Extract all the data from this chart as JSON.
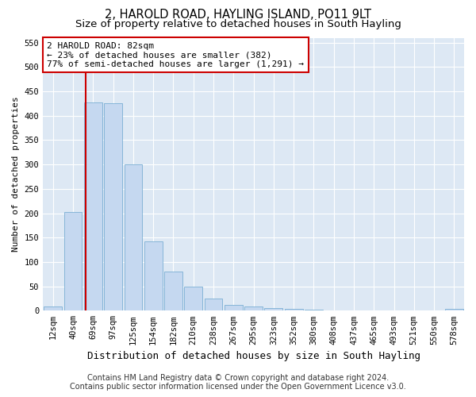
{
  "title": "2, HAROLD ROAD, HAYLING ISLAND, PO11 9LT",
  "subtitle": "Size of property relative to detached houses in South Hayling",
  "xlabel": "Distribution of detached houses by size in South Hayling",
  "ylabel": "Number of detached properties",
  "categories": [
    "12sqm",
    "40sqm",
    "69sqm",
    "97sqm",
    "125sqm",
    "154sqm",
    "182sqm",
    "210sqm",
    "238sqm",
    "267sqm",
    "295sqm",
    "323sqm",
    "352sqm",
    "380sqm",
    "408sqm",
    "437sqm",
    "465sqm",
    "493sqm",
    "521sqm",
    "550sqm",
    "578sqm"
  ],
  "values": [
    8,
    202,
    428,
    425,
    300,
    143,
    80,
    50,
    25,
    12,
    8,
    5,
    3,
    2,
    1,
    0,
    0,
    0,
    0,
    0,
    3
  ],
  "bar_color": "#c5d8f0",
  "bar_edge_color": "#7bafd4",
  "marker_line_color": "#cc0000",
  "annotation_box_color": "#cc0000",
  "annotation_line1": "2 HAROLD ROAD: 82sqm",
  "annotation_line2": "← 23% of detached houses are smaller (382)",
  "annotation_line3": "77% of semi-detached houses are larger (1,291) →",
  "ylim": [
    0,
    560
  ],
  "yticks": [
    0,
    50,
    100,
    150,
    200,
    250,
    300,
    350,
    400,
    450,
    500,
    550
  ],
  "plot_bg_color": "#dde8f4",
  "grid_color": "#ffffff",
  "footer_line1": "Contains HM Land Registry data © Crown copyright and database right 2024.",
  "footer_line2": "Contains public sector information licensed under the Open Government Licence v3.0.",
  "title_fontsize": 10.5,
  "subtitle_fontsize": 9.5,
  "annotation_fontsize": 8,
  "tick_fontsize": 7.5,
  "ylabel_fontsize": 8,
  "xlabel_fontsize": 9,
  "footer_fontsize": 7
}
